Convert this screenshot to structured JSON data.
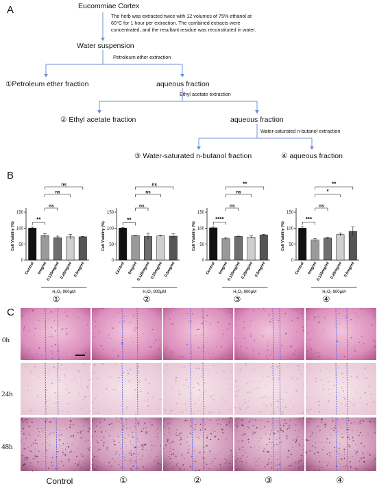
{
  "panels": {
    "a": "A",
    "b": "B",
    "c": "C"
  },
  "flow": {
    "root": "Eucommiae Cortex",
    "extract_note_1": "The herb was extracted twice with 12 volumes of 75% ethanol at",
    "extract_note_2": "60°C for 1 hour per extraction. The combined extracts were",
    "extract_note_3": "concentrated, and the resultant residue was reconstituted in water.",
    "water_suspension": "Water suspension",
    "step1": "Petroleum ether extraction",
    "frac1": "①Petroleum ether fraction",
    "aq1": "aqueous  fraction",
    "step2": "Ethyl acetate extraction",
    "frac2": "② Ethyl acetate fraction",
    "aq2": "aqueous  fraction",
    "step3": "Water-saturated n-butanol extraction",
    "frac3": "③ Water-saturated n-butanol fraction",
    "frac4": "④ aqueous  fraction"
  },
  "chart_data": [
    {
      "type": "bar",
      "panel_label": "①",
      "ylabel": "Cell Viability (%)",
      "ylim": [
        0,
        150
      ],
      "yticks": [
        0,
        50,
        100,
        150
      ],
      "categories": [
        "Control",
        "0mg/ml",
        "0.125mg/ml",
        "0.25mg/ml",
        "0.5mg/ml"
      ],
      "values": [
        100,
        77,
        70,
        73,
        73
      ],
      "errors": [
        3,
        6,
        5,
        7,
        1
      ],
      "colors": [
        "#111111",
        "#9a9a9a",
        "#6e6e6e",
        "#cfcfcf",
        "#555555"
      ],
      "treatment": "H₂O₂ 900μM",
      "brackets": [
        {
          "from": 0,
          "to": 1,
          "label": "**"
        },
        {
          "from": 1,
          "to": 2,
          "label": "ns"
        },
        {
          "from": 1,
          "to": 3,
          "label": "ns"
        },
        {
          "from": 1,
          "to": 4,
          "label": "ns"
        }
      ]
    },
    {
      "type": "bar",
      "panel_label": "②",
      "ylabel": "Cell Viability (%)",
      "ylim": [
        0,
        150
      ],
      "yticks": [
        0,
        50,
        100,
        150
      ],
      "categories": [
        "Control",
        "0mg/ml",
        "0.125mg/ml",
        "0.25mg/ml",
        "0.5mg/ml"
      ],
      "values": [
        100,
        77,
        74,
        76,
        75
      ],
      "errors": [
        2,
        1,
        10,
        2,
        7
      ],
      "colors": [
        "#111111",
        "#9a9a9a",
        "#6e6e6e",
        "#cfcfcf",
        "#555555"
      ],
      "treatment": "H₂O₂ 900μM",
      "brackets": [
        {
          "from": 0,
          "to": 1,
          "label": "**"
        },
        {
          "from": 1,
          "to": 2,
          "label": "ns"
        },
        {
          "from": 1,
          "to": 3,
          "label": "ns"
        },
        {
          "from": 1,
          "to": 4,
          "label": "ns"
        }
      ]
    },
    {
      "type": "bar",
      "panel_label": "③",
      "ylabel": "Cell Viability (%)",
      "ylim": [
        0,
        150
      ],
      "yticks": [
        0,
        50,
        100,
        150
      ],
      "categories": [
        "Control",
        "0mg/ml",
        "0.125mg/ml",
        "0.25mg/ml",
        "0.5mg/ml"
      ],
      "values": [
        101,
        67,
        74,
        72,
        79
      ],
      "errors": [
        3,
        4,
        1,
        4,
        2
      ],
      "colors": [
        "#111111",
        "#9a9a9a",
        "#6e6e6e",
        "#cfcfcf",
        "#555555"
      ],
      "treatment": "H₂O₂ 900μM",
      "brackets": [
        {
          "from": 0,
          "to": 1,
          "label": "****"
        },
        {
          "from": 1,
          "to": 2,
          "label": "ns"
        },
        {
          "from": 1,
          "to": 3,
          "label": "ns"
        },
        {
          "from": 1,
          "to": 4,
          "label": "**"
        }
      ]
    },
    {
      "type": "bar",
      "panel_label": "④",
      "ylabel": "Cell Viability (%)",
      "ylim": [
        0,
        150
      ],
      "yticks": [
        0,
        50,
        100,
        150
      ],
      "categories": [
        "Control",
        "0mg/ml",
        "0.125mg/ml",
        "0.25mg/ml",
        "0.5mg/ml"
      ],
      "values": [
        100,
        63,
        69,
        80,
        90
      ],
      "errors": [
        4,
        4,
        3,
        5,
        14
      ],
      "colors": [
        "#111111",
        "#9a9a9a",
        "#6e6e6e",
        "#cfcfcf",
        "#555555"
      ],
      "treatment": "H₂O₂ 900μM",
      "brackets": [
        {
          "from": 0,
          "to": 1,
          "label": "***"
        },
        {
          "from": 1,
          "to": 2,
          "label": "ns"
        },
        {
          "from": 1,
          "to": 3,
          "label": "*"
        },
        {
          "from": 1,
          "to": 4,
          "label": "**"
        }
      ]
    }
  ],
  "micrographs": {
    "row_labels": [
      "0h",
      "24h",
      "48h"
    ],
    "col_labels": [
      "Control",
      "①",
      "②",
      "③",
      "④"
    ],
    "scratch_line_color": "#3b4fd8"
  }
}
